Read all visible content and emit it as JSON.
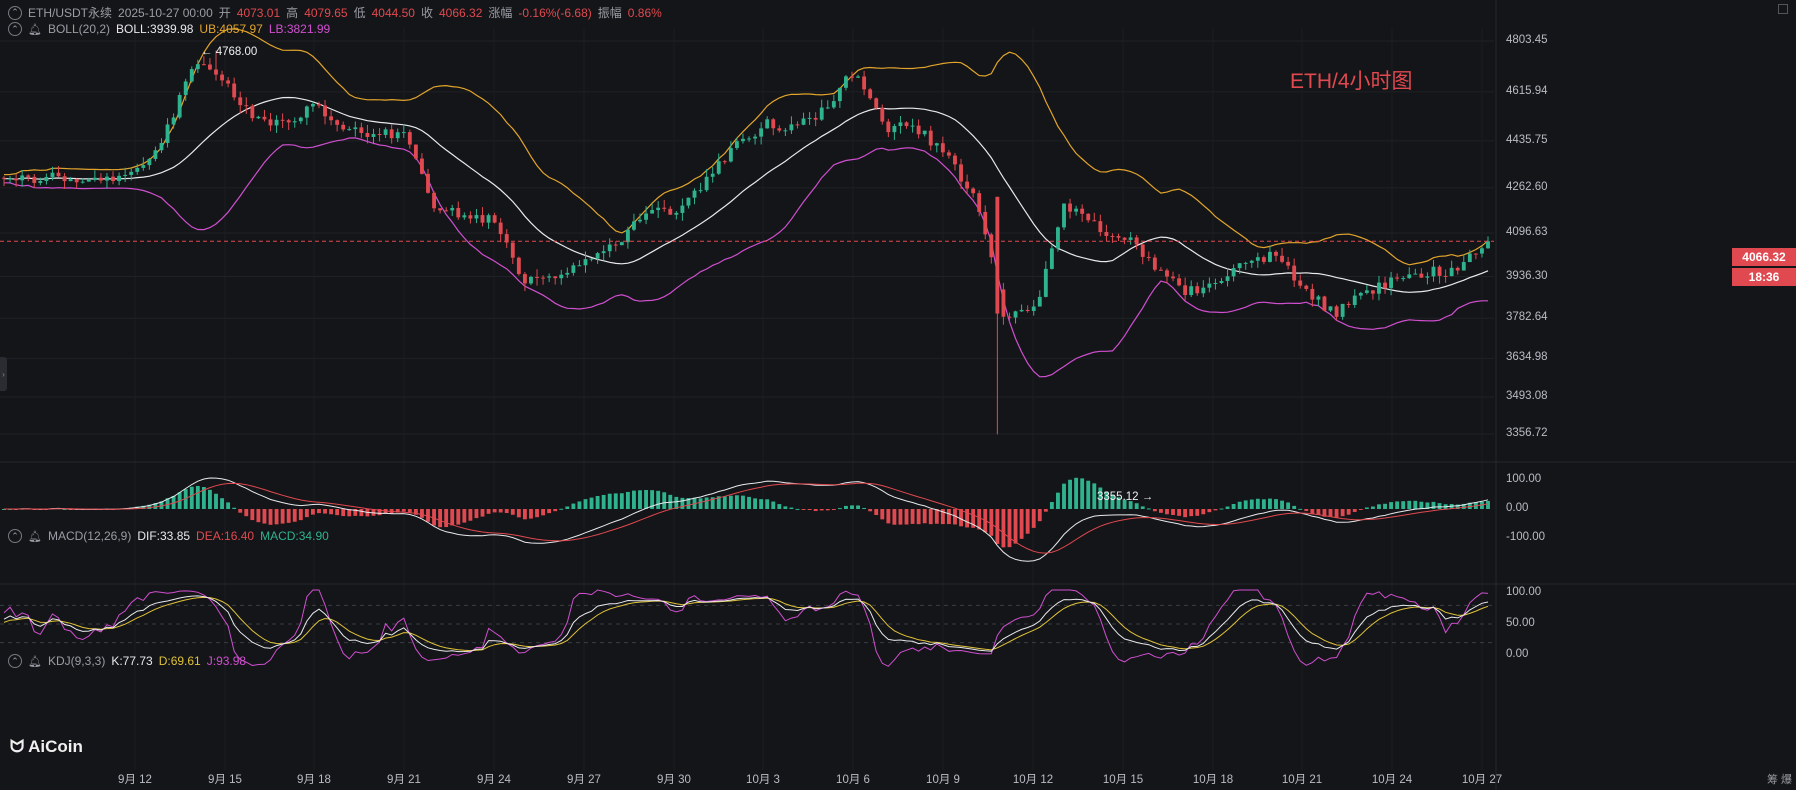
{
  "header_main": {
    "symbol": "ETH/USDT永续",
    "datetime": "2025-10-27 00:00",
    "open_label": "开",
    "open": "4073.01",
    "high_label": "高",
    "high": "4079.65",
    "low_label": "低",
    "low": "4044.50",
    "close_label": "收",
    "close": "4066.32",
    "change_label": "涨幅",
    "change": "-0.16%(-6.68)",
    "amp_label": "振幅",
    "amp": "0.86%"
  },
  "header_boll": {
    "name": "BOLL(20,2)",
    "boll": "BOLL:3939.98",
    "ub": "UB:4057.97",
    "lb": "LB:3821.99"
  },
  "header_macd": {
    "name": "MACD(12,26,9)",
    "dif": "DIF:33.85",
    "dea": "DEA:16.40",
    "macd": "MACD:34.90"
  },
  "header_kdj": {
    "name": "KDJ(9,3,3)",
    "k": "K:77.73",
    "d": "D:69.61",
    "j": "J:93.98"
  },
  "chart_title": "ETH/4小时图",
  "annotations": {
    "high": "4768.00",
    "low": "3355.12"
  },
  "price_tag": {
    "price": "4066.32",
    "countdown": "18:36"
  },
  "logo_text": "AiCoin",
  "corner_text": "筹 爆",
  "colors": {
    "up": "#2fb38f",
    "down": "#e0494f",
    "boll_mid": "#e8e9ec",
    "boll_up": "#e2a42c",
    "boll_low": "#d04fd0",
    "kdj_k": "#e8e9ec",
    "kdj_d": "#e0c23a",
    "kdj_j": "#d04fd0"
  },
  "chart_data": [
    {
      "type": "candlestick",
      "title": "ETH/4小时图",
      "y_ticks": [
        "4803.45",
        "4615.94",
        "4435.75",
        "4262.60",
        "4096.63",
        "3936.30",
        "3782.64",
        "3634.98",
        "3493.08",
        "3356.72"
      ],
      "x_ticks": [
        "9月 12",
        "9月 15",
        "9月 18",
        "9月 21",
        "9月 24",
        "9月 27",
        "9月 30",
        "10月 3",
        "10月 6",
        "10月 9",
        "10月 12",
        "10月 15",
        "10月 18",
        "10月 21",
        "10月 24",
        "10月 27"
      ],
      "ylim": [
        3356.72,
        4803.45
      ],
      "close_path": [
        [
          "9月 10",
          4300
        ],
        [
          "9月 12",
          4310
        ],
        [
          "9月 13",
          4460
        ],
        [
          "9月 14",
          4740
        ],
        [
          "9月 15",
          4650
        ],
        [
          "9月 16",
          4520
        ],
        [
          "9月 17",
          4500
        ],
        [
          "9月 18",
          4560
        ],
        [
          "9月 19",
          4470
        ],
        [
          "9月 20",
          4470
        ],
        [
          "9月 21",
          4460
        ],
        [
          "9月 22",
          4180
        ],
        [
          "9月 23",
          4170
        ],
        [
          "9月 24",
          4140
        ],
        [
          "9月 25",
          3920
        ],
        [
          "9月 26",
          3940
        ],
        [
          "9月 27",
          4010
        ],
        [
          "9月 28",
          4040
        ],
        [
          "9月 29",
          4180
        ],
        [
          "9月 30",
          4160
        ],
        [
          "10月 1",
          4290
        ],
        [
          "10月 2",
          4410
        ],
        [
          "10月 3",
          4500
        ],
        [
          "10月 4",
          4480
        ],
        [
          "10月 5",
          4550
        ],
        [
          "10月 6",
          4700
        ],
        [
          "10月 7",
          4480
        ],
        [
          "10月 8",
          4490
        ],
        [
          "10月 9",
          4380
        ],
        [
          "10月 10",
          4240
        ],
        [
          "10月 11",
          3780
        ],
        [
          "10月 12",
          3820
        ],
        [
          "10月 13",
          4200
        ],
        [
          "10月 14",
          4120
        ],
        [
          "10月 15",
          4080
        ],
        [
          "10月 16",
          3980
        ],
        [
          "10月 17",
          3880
        ],
        [
          "10月 18",
          3900
        ],
        [
          "10月 19",
          3990
        ],
        [
          "10月 20",
          4020
        ],
        [
          "10月 21",
          3880
        ],
        [
          "10月 22",
          3800
        ],
        [
          "10月 23",
          3880
        ],
        [
          "10月 24",
          3930
        ],
        [
          "10月 25",
          3950
        ],
        [
          "10月 26",
          3960
        ],
        [
          "10月 27",
          4066.32
        ]
      ],
      "annotated_high": 4768.0,
      "annotated_low": 3355.12,
      "last_price": 4066.32
    },
    {
      "type": "line",
      "title": "MACD(12,26,9)",
      "y_ticks": [
        "100.00",
        "0.00",
        "-100.00"
      ],
      "ylim": [
        -200,
        130
      ]
    },
    {
      "type": "line",
      "title": "KDJ(9,3,3)",
      "y_ticks": [
        "100.00",
        "50.00",
        "0.00"
      ],
      "ylim": [
        -15,
        112
      ]
    }
  ]
}
